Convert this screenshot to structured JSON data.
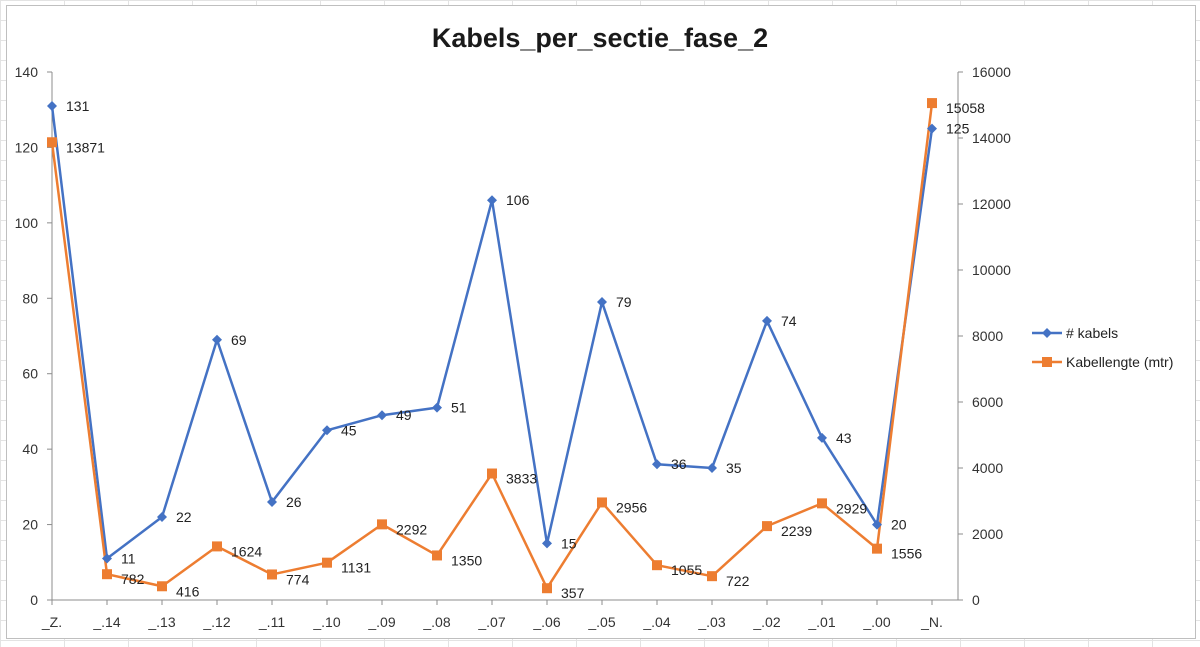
{
  "chart_data": {
    "type": "line",
    "title": "Kabels_per_sectie_fase_2",
    "categories": [
      "_Z.",
      "_.14",
      "_.13",
      "_.12",
      "_.11",
      "_.10",
      "_.09",
      "_.08",
      "_.07",
      "_.06",
      "_.05",
      "_.04",
      "_.03",
      "_.02",
      "_.01",
      "_.00",
      "_N."
    ],
    "y_left": {
      "min": 0,
      "max": 140,
      "ticks": [
        "0",
        "20",
        "40",
        "60",
        "80",
        "100",
        "120",
        "140"
      ]
    },
    "y_right": {
      "min": 0,
      "max": 16000,
      "ticks": [
        "0",
        "2000",
        "4000",
        "6000",
        "8000",
        "10000",
        "12000",
        "14000",
        "16000"
      ]
    },
    "series": [
      {
        "name": "# kabels",
        "axis": "left",
        "color": "#4472C4",
        "marker": "diamond",
        "values": [
          131,
          11,
          22,
          69,
          26,
          45,
          49,
          51,
          106,
          15,
          79,
          36,
          35,
          74,
          43,
          20,
          125
        ]
      },
      {
        "name": "Kabellengte (mtr)",
        "axis": "right",
        "color": "#ED7D31",
        "marker": "square",
        "values": [
          13871,
          782,
          416,
          1624,
          774,
          1131,
          2292,
          1350,
          3833,
          357,
          2956,
          1055,
          722,
          2239,
          2929,
          1556,
          15058
        ]
      }
    ],
    "legend_position": "right",
    "grid": false
  }
}
